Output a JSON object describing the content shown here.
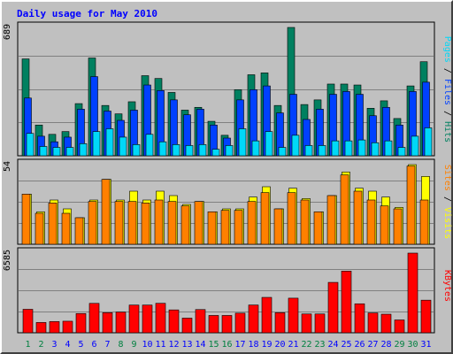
{
  "title": "Daily usage for May 2010",
  "colors": {
    "background": "#c0c0c0",
    "title": "#0000ff",
    "pages": "#00d8f8",
    "files": "#0040ff",
    "hits": "#008060",
    "sites": "#ff8000",
    "visits": "#ffff00",
    "kbytes": "#ff0000",
    "weekend_day": "#008040",
    "week_day": "#0000ff",
    "grid": "#808080",
    "separator": "#ffffff"
  },
  "legend": {
    "top_pages": "Pages",
    "top_files": "Files",
    "top_hits": "Hits",
    "mid_sites": "Sites",
    "mid_visits": "Visits",
    "bottom_kbytes": "KBytes",
    "separator": " / "
  },
  "chart_data": [
    {
      "type": "bar",
      "panel": "hits-files-pages",
      "ymax_label": "689",
      "ylim": [
        0,
        689
      ],
      "categories": [
        "1",
        "2",
        "3",
        "4",
        "5",
        "6",
        "7",
        "8",
        "9",
        "10",
        "11",
        "12",
        "13",
        "14",
        "15",
        "16",
        "17",
        "18",
        "19",
        "20",
        "21",
        "22",
        "23",
        "24",
        "25",
        "26",
        "27",
        "28",
        "29",
        "30",
        "31"
      ],
      "series": [
        {
          "name": "Hits",
          "values": [
            520,
            165,
            115,
            130,
            280,
            525,
            270,
            225,
            290,
            430,
            415,
            340,
            245,
            260,
            185,
            110,
            355,
            435,
            445,
            270,
            689,
            275,
            300,
            385,
            385,
            380,
            255,
            295,
            200,
            375,
            505
          ]
        },
        {
          "name": "Files",
          "values": [
            310,
            105,
            75,
            100,
            250,
            425,
            240,
            190,
            245,
            380,
            350,
            300,
            220,
            250,
            165,
            95,
            300,
            355,
            375,
            230,
            330,
            195,
            250,
            330,
            345,
            330,
            215,
            260,
            165,
            345,
            395
          ]
        },
        {
          "name": "Pages",
          "values": [
            120,
            50,
            45,
            45,
            65,
            130,
            145,
            100,
            60,
            115,
            75,
            60,
            55,
            60,
            35,
            55,
            145,
            80,
            130,
            45,
            110,
            55,
            55,
            80,
            80,
            85,
            70,
            80,
            45,
            105,
            150
          ]
        }
      ]
    },
    {
      "type": "bar",
      "panel": "visits-sites",
      "ymax_label": "54",
      "ylim": [
        0,
        54
      ],
      "categories": [
        "1",
        "2",
        "3",
        "4",
        "5",
        "6",
        "7",
        "8",
        "9",
        "10",
        "11",
        "12",
        "13",
        "14",
        "15",
        "16",
        "17",
        "18",
        "19",
        "20",
        "21",
        "22",
        "23",
        "24",
        "25",
        "26",
        "27",
        "28",
        "29",
        "30",
        "31"
      ],
      "series": [
        {
          "name": "Visits",
          "values": [
            34,
            22,
            30,
            24,
            18,
            30,
            44,
            30,
            36,
            30,
            36,
            33,
            27,
            29,
            22,
            24,
            24,
            32,
            39,
            24,
            38,
            31,
            22,
            33,
            49,
            38,
            36,
            32,
            25,
            54,
            46
          ]
        },
        {
          "name": "Sites",
          "values": [
            34,
            21,
            28,
            21,
            18,
            29,
            44,
            29,
            29,
            28,
            30,
            29,
            26,
            29,
            22,
            23,
            23,
            29,
            35,
            24,
            35,
            30,
            22,
            33,
            47,
            36,
            30,
            26,
            24,
            53,
            30
          ]
        }
      ]
    },
    {
      "type": "bar",
      "panel": "kbytes",
      "ymax_label": "6585",
      "ylim": [
        0,
        6585
      ],
      "categories": [
        "1",
        "2",
        "3",
        "4",
        "5",
        "6",
        "7",
        "8",
        "9",
        "10",
        "11",
        "12",
        "13",
        "14",
        "15",
        "16",
        "17",
        "18",
        "19",
        "20",
        "21",
        "22",
        "23",
        "24",
        "25",
        "26",
        "27",
        "28",
        "29",
        "30",
        "31"
      ],
      "series": [
        {
          "name": "KBytes",
          "values": [
            1940,
            850,
            925,
            955,
            1590,
            2430,
            1660,
            1710,
            2290,
            2290,
            2435,
            1890,
            1210,
            1920,
            1430,
            1430,
            1620,
            2295,
            2925,
            1660,
            2860,
            1555,
            1555,
            4165,
            5100,
            2395,
            1640,
            1535,
            1060,
            6585,
            2695
          ]
        }
      ]
    }
  ],
  "days": {
    "labels": [
      "1",
      "2",
      "3",
      "4",
      "5",
      "6",
      "7",
      "8",
      "9",
      "10",
      "11",
      "12",
      "13",
      "14",
      "15",
      "16",
      "17",
      "18",
      "19",
      "20",
      "21",
      "22",
      "23",
      "24",
      "25",
      "26",
      "27",
      "28",
      "29",
      "30",
      "31"
    ],
    "weekend": [
      true,
      true,
      false,
      false,
      false,
      false,
      false,
      true,
      true,
      false,
      false,
      false,
      false,
      false,
      true,
      true,
      false,
      false,
      false,
      false,
      false,
      true,
      true,
      false,
      false,
      false,
      false,
      false,
      true,
      true,
      false
    ]
  }
}
